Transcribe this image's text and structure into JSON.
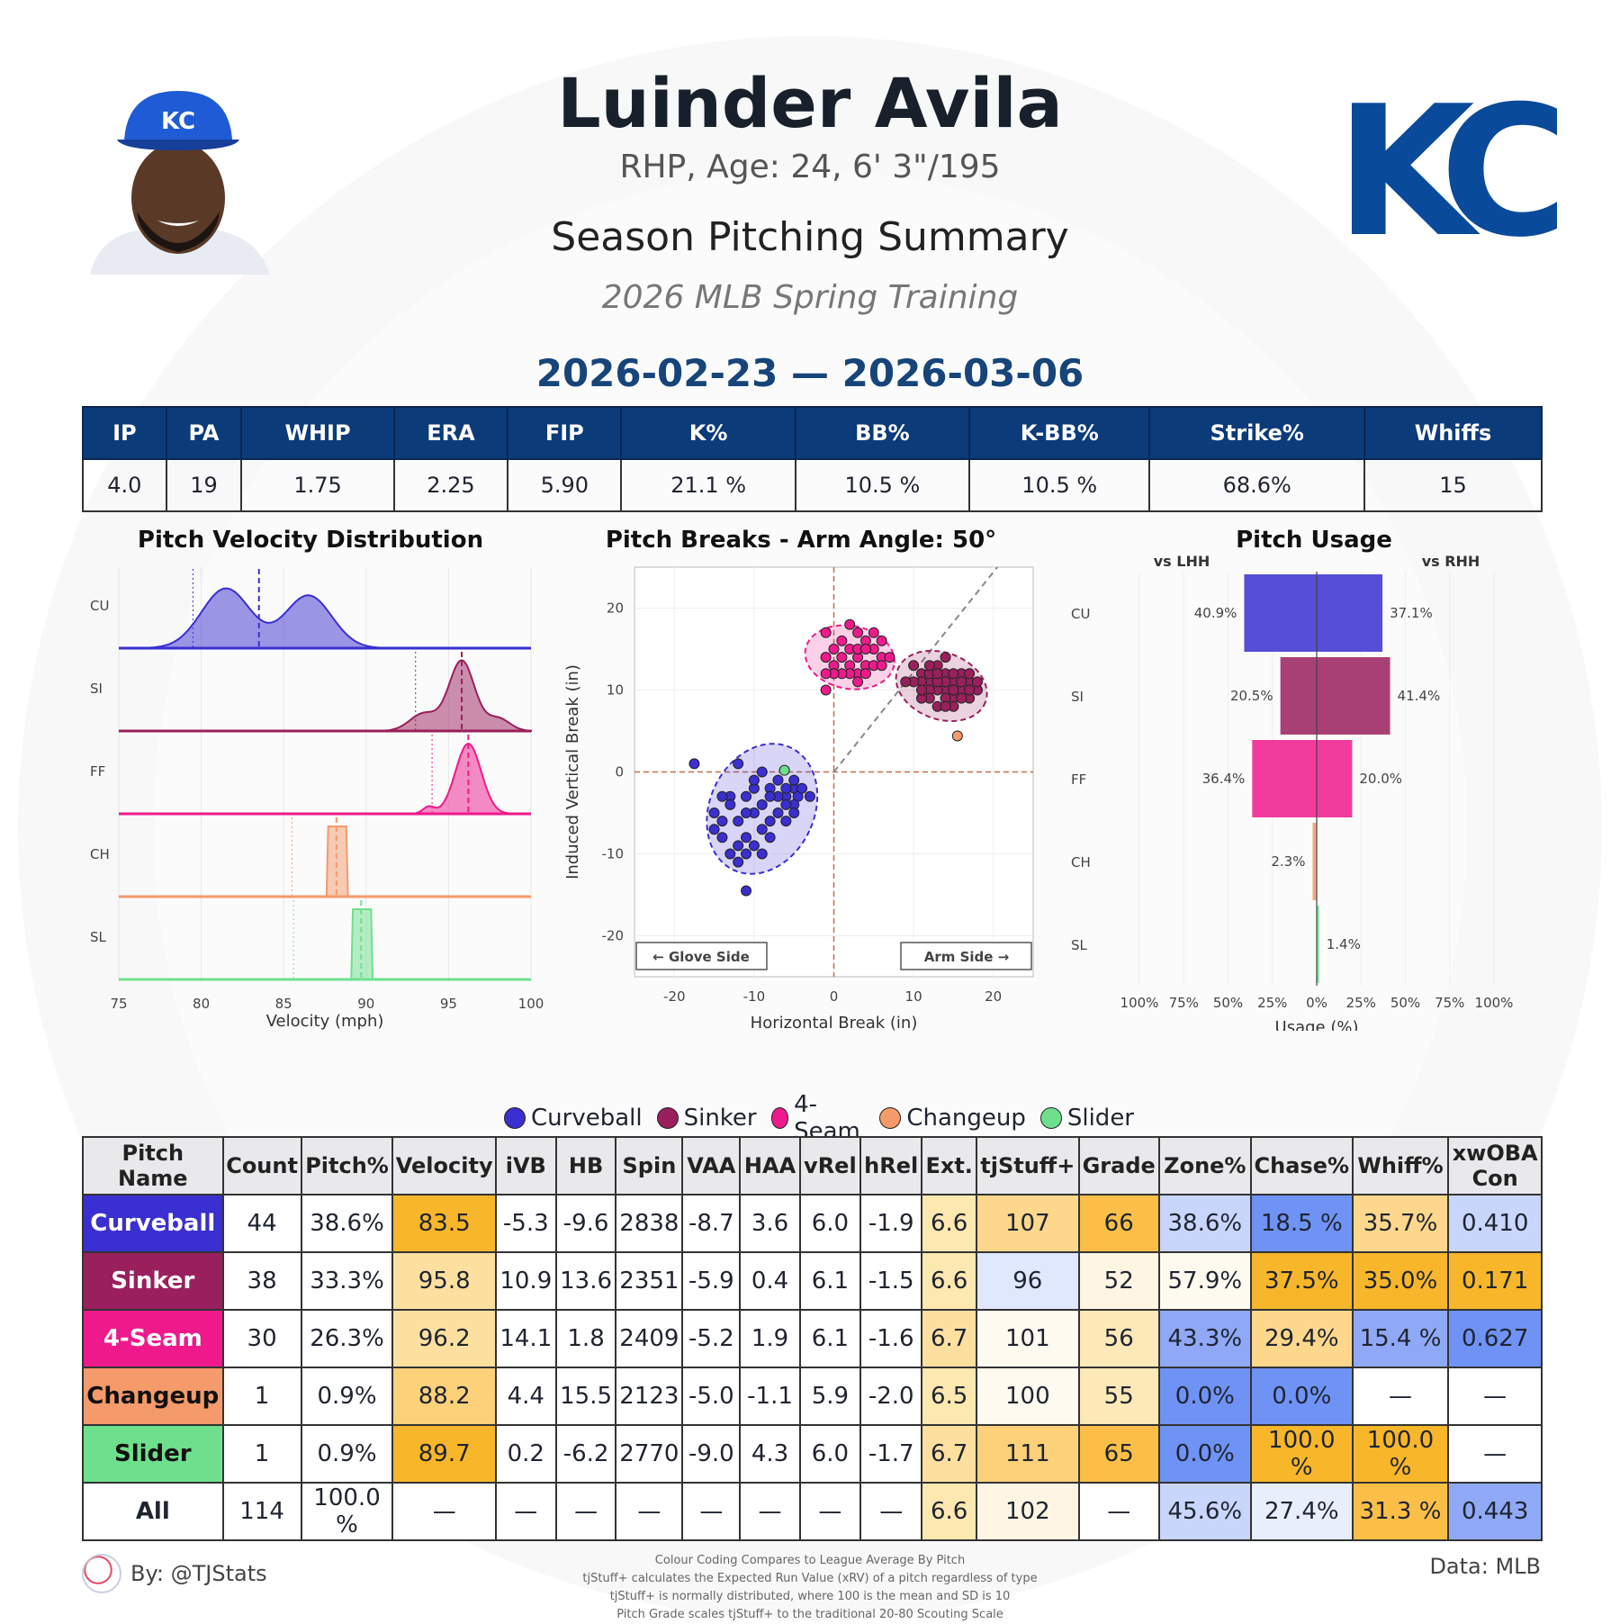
{
  "header": {
    "name": "Luinder Avila",
    "bio": "RHP, Age: 24, 6' 3\"/195",
    "title": "Season Pitching Summary",
    "season": "2026 MLB Spring Training",
    "dates": "2026-02-23 — 2026-03-06",
    "team_logo_text": "KC",
    "cap_logo_text": "KC"
  },
  "season_stats": {
    "headers": [
      "IP",
      "PA",
      "WHIP",
      "ERA",
      "FIP",
      "K%",
      "BB%",
      "K-BB%",
      "Strike%",
      "Whiffs"
    ],
    "values": [
      "4.0",
      "19",
      "1.75",
      "2.25",
      "5.90",
      "21.1 %",
      "10.5 %",
      "10.5 %",
      "68.6%",
      "15"
    ]
  },
  "colors": {
    "Curveball": "#3a2fd0",
    "Sinker": "#9a1f5d",
    "4-Seam": "#ee1a8c",
    "Changeup": "#f49a6b",
    "Slider": "#6ee08d",
    "header_blue": "#0c3b7a"
  },
  "chart_data": [
    {
      "type": "area",
      "title": "Pitch Velocity Distribution",
      "xlabel": "Velocity (mph)",
      "xlim": [
        75,
        100
      ],
      "x_ticks": [
        "75",
        "80",
        "85",
        "90",
        "95",
        "100"
      ],
      "rows": [
        {
          "label": "CU",
          "pitch": "Curveball",
          "mean": 83.5,
          "league_avg": 79.5
        },
        {
          "label": "SI",
          "pitch": "Sinker",
          "mean": 95.8,
          "league_avg": 93.0
        },
        {
          "label": "FF",
          "pitch": "4-Seam",
          "mean": 96.2,
          "league_avg": 94.0
        },
        {
          "label": "CH",
          "pitch": "Changeup",
          "mean": 88.2,
          "league_avg": 85.5
        },
        {
          "label": "SL",
          "pitch": "Slider",
          "mean": 89.7,
          "league_avg": 85.6
        }
      ]
    },
    {
      "type": "scatter",
      "title": "Pitch Breaks - Arm Angle: 50°",
      "xlabel": "Horizontal Break (in)",
      "ylabel": "Induced Vertical Break (in)",
      "xlim": [
        -25,
        25
      ],
      "ylim": [
        -25,
        25
      ],
      "x_ticks": [
        "-20",
        "-10",
        "0",
        "10",
        "20"
      ],
      "y_ticks": [
        "20",
        "10",
        "0",
        "-10",
        "-20"
      ],
      "glove_label": "← Glove Side",
      "arm_label": "Arm Side →",
      "series": [
        {
          "name": "Curveball",
          "points": [
            [
              -17.5,
              1
            ],
            [
              -12,
              1
            ],
            [
              -10,
              -5
            ],
            [
              -8,
              -2
            ],
            [
              -6,
              -3
            ],
            [
              -5,
              -2
            ],
            [
              -4.5,
              -3
            ],
            [
              -5,
              -4
            ],
            [
              -7,
              -3
            ],
            [
              -9,
              -4
            ],
            [
              -11,
              -5
            ],
            [
              -13,
              -3
            ],
            [
              -14,
              -6
            ],
            [
              -15,
              -7
            ],
            [
              -14,
              -8
            ],
            [
              -12,
              -9
            ],
            [
              -10,
              -9
            ],
            [
              -11,
              -10
            ],
            [
              -12,
              -11
            ],
            [
              -13,
              -10
            ],
            [
              -9,
              -7
            ],
            [
              -8,
              -6
            ],
            [
              -7,
              -5
            ],
            [
              -6,
              -4
            ],
            [
              -5,
              -5
            ],
            [
              -9,
              0
            ],
            [
              -11,
              -3
            ],
            [
              -13,
              -4
            ],
            [
              -7,
              -1
            ],
            [
              -8,
              -3
            ],
            [
              -4,
              -2
            ],
            [
              -3,
              -3
            ],
            [
              -5,
              -1
            ],
            [
              -6,
              -2
            ],
            [
              -10,
              -2
            ],
            [
              -12,
              -6
            ],
            [
              -15,
              -5
            ],
            [
              -11,
              -8
            ],
            [
              -9,
              -10
            ],
            [
              -14,
              -3
            ],
            [
              -6,
              -6
            ],
            [
              -8,
              -8
            ],
            [
              -11,
              -14.5
            ],
            [
              -10,
              -1
            ]
          ]
        },
        {
          "name": "Sinker",
          "points": [
            [
              10,
              13
            ],
            [
              11,
              12
            ],
            [
              12,
              11
            ],
            [
              13,
              13
            ],
            [
              14,
              12
            ],
            [
              15,
              11
            ],
            [
              16,
              10
            ],
            [
              17,
              11
            ],
            [
              18,
              10
            ],
            [
              15,
              9
            ],
            [
              14,
              10
            ],
            [
              13,
              10
            ],
            [
              12,
              10
            ],
            [
              11,
              11
            ],
            [
              16,
              12
            ],
            [
              17,
              9
            ],
            [
              18,
              11
            ],
            [
              14,
              9
            ],
            [
              15,
              8
            ],
            [
              13,
              8
            ],
            [
              12,
              9
            ],
            [
              11,
              9
            ],
            [
              16,
              9
            ],
            [
              17,
              10
            ],
            [
              14,
              11
            ],
            [
              13,
              11
            ],
            [
              15,
              12
            ],
            [
              12,
              12
            ],
            [
              10,
              11
            ],
            [
              11,
              10
            ],
            [
              16,
              11
            ],
            [
              14,
              14
            ],
            [
              13,
              12
            ],
            [
              15,
              10
            ],
            [
              9,
              11
            ],
            [
              17,
              12
            ],
            [
              14,
              8
            ],
            [
              12,
              13
            ]
          ]
        },
        {
          "name": "4-Seam",
          "points": [
            [
              -1,
              17
            ],
            [
              0,
              15
            ],
            [
              1,
              16
            ],
            [
              2,
              18
            ],
            [
              3,
              17
            ],
            [
              4,
              16
            ],
            [
              5,
              15
            ],
            [
              6,
              14
            ],
            [
              4,
              13
            ],
            [
              3,
              14
            ],
            [
              2,
              15
            ],
            [
              1,
              14
            ],
            [
              0,
              13
            ],
            [
              -1,
              14
            ],
            [
              2,
              13
            ],
            [
              3,
              12
            ],
            [
              4,
              12
            ],
            [
              5,
              13
            ],
            [
              6,
              16
            ],
            [
              5,
              17
            ],
            [
              3,
              15
            ],
            [
              2,
              12
            ],
            [
              1,
              12
            ],
            [
              0,
              12
            ],
            [
              -1,
              12
            ],
            [
              4,
              15
            ],
            [
              6,
              13
            ],
            [
              7,
              14
            ],
            [
              -1,
              10
            ],
            [
              3,
              11
            ]
          ]
        },
        {
          "name": "Changeup",
          "points": [
            [
              15.5,
              4.4
            ]
          ]
        },
        {
          "name": "Slider",
          "points": [
            [
              -6.2,
              0.2
            ]
          ]
        }
      ]
    },
    {
      "type": "bar",
      "title": "Pitch Usage",
      "xlabel": "Usage (%)",
      "left_label": "vs LHH",
      "right_label": "vs RHH",
      "x_ticks": [
        "100%",
        "75%",
        "50%",
        "25%",
        "0%",
        "25%",
        "50%",
        "75%",
        "100%"
      ],
      "categories": [
        "CU",
        "SI",
        "FF",
        "CH",
        "SL"
      ],
      "series": [
        {
          "name": "vs LHH",
          "values": [
            40.9,
            20.5,
            36.4,
            2.3,
            0
          ]
        },
        {
          "name": "vs RHH",
          "values": [
            37.1,
            41.4,
            20.0,
            0,
            1.4
          ]
        }
      ],
      "value_labels_left": [
        "40.9%",
        "20.5%",
        "36.4%",
        "2.3%",
        ""
      ],
      "value_labels_right": [
        "37.1%",
        "41.4%",
        "20.0%",
        "",
        "1.4%"
      ]
    }
  ],
  "legend": [
    "Curveball",
    "Sinker",
    "4-Seam",
    "Changeup",
    "Slider"
  ],
  "pitch_table": {
    "headers": [
      "Pitch Name",
      "Count",
      "Pitch%",
      "Velocity",
      "iVB",
      "HB",
      "Spin",
      "VAA",
      "HAA",
      "vRel",
      "hRel",
      "Ext.",
      "tjStuff+",
      "Grade",
      "Zone%",
      "Chase%",
      "Whiff%",
      "xwOBA Con"
    ],
    "rows": [
      {
        "name": "Curveball",
        "cells": [
          "44",
          "38.6%",
          "83.5",
          "-5.3",
          "-9.6",
          "2838",
          "-8.7",
          "3.6",
          "6.0",
          "-1.9",
          "6.6",
          "107",
          "66",
          "38.6%",
          "18.5 %",
          "35.7%",
          "0.410"
        ],
        "shades": [
          "#fff",
          "#fff",
          "#f8b62a",
          "#fff",
          "#fff",
          "#fff",
          "#fff",
          "#fff",
          "#fff",
          "#fff",
          "#fde8b0",
          "#fdd78c",
          "#fbbf48",
          "#c9d6fb",
          "#6f93f5",
          "#fdd78c",
          "#c9d6fb"
        ]
      },
      {
        "name": "Sinker",
        "cells": [
          "38",
          "33.3%",
          "95.8",
          "10.9",
          "13.6",
          "2351",
          "-5.9",
          "0.4",
          "6.1",
          "-1.5",
          "6.6",
          "96",
          "52",
          "57.9%",
          "37.5%",
          "35.0%",
          "0.171"
        ],
        "shades": [
          "#fff",
          "#fff",
          "#fde0a0",
          "#fff",
          "#fff",
          "#fff",
          "#fff",
          "#fff",
          "#fff",
          "#fff",
          "#fde8b0",
          "#e0e8fd",
          "#fef6e3",
          "#fffaf0",
          "#f8b62a",
          "#f8b62a",
          "#f8b62a"
        ]
      },
      {
        "name": "4-Seam",
        "cells": [
          "30",
          "26.3%",
          "96.2",
          "14.1",
          "1.8",
          "2409",
          "-5.2",
          "1.9",
          "6.1",
          "-1.6",
          "6.7",
          "101",
          "56",
          "43.3%",
          "29.4%",
          "15.4 %",
          "0.627"
        ],
        "shades": [
          "#fff",
          "#fff",
          "#fde0a0",
          "#fff",
          "#fff",
          "#fff",
          "#fff",
          "#fff",
          "#fff",
          "#fff",
          "#fde0a0",
          "#fffaf0",
          "#fde8b8",
          "#8fa9f7",
          "#fdd78c",
          "#8fa9f7",
          "#6f93f5"
        ]
      },
      {
        "name": "Changeup",
        "cells": [
          "1",
          "0.9%",
          "88.2",
          "4.4",
          "15.5",
          "2123",
          "-5.0",
          "-1.1",
          "5.9",
          "-2.0",
          "6.5",
          "100",
          "55",
          "0.0%",
          "0.0%",
          "—",
          "—"
        ],
        "shades": [
          "#fff",
          "#fff",
          "#fdd07a",
          "#fff",
          "#fff",
          "#fff",
          "#fff",
          "#fff",
          "#fff",
          "#fff",
          "#fde8b0",
          "#fffaf0",
          "#fde8b8",
          "#6f93f5",
          "#6f93f5",
          "#fff",
          "#fff"
        ]
      },
      {
        "name": "Slider",
        "cells": [
          "1",
          "0.9%",
          "89.7",
          "0.2",
          "-6.2",
          "2770",
          "-9.0",
          "4.3",
          "6.0",
          "-1.7",
          "6.7",
          "111",
          "65",
          "0.0%",
          "100.0 %",
          "100.0 %",
          "—"
        ],
        "shades": [
          "#fff",
          "#fff",
          "#f8b62a",
          "#fff",
          "#fff",
          "#fff",
          "#fff",
          "#fff",
          "#fff",
          "#fff",
          "#fde0a0",
          "#fdd07a",
          "#fbbf48",
          "#6f93f5",
          "#f8b62a",
          "#f8b62a",
          "#fff"
        ]
      },
      {
        "name": "All",
        "cells": [
          "114",
          "100.0 %",
          "—",
          "—",
          "—",
          "—",
          "—",
          "—",
          "—",
          "—",
          "6.6",
          "102",
          "—",
          "45.6%",
          "27.4%",
          "31.3 %",
          "0.443"
        ],
        "shades": [
          "#fff",
          "#fff",
          "#fff",
          "#fff",
          "#fff",
          "#fff",
          "#fff",
          "#fff",
          "#fff",
          "#fff",
          "#fde8b0",
          "#fef6e3",
          "#fff",
          "#c9d6fb",
          "#e9eefd",
          "#fbbf48",
          "#8fa9f7"
        ]
      }
    ]
  },
  "footer": {
    "byline": "By: @TJStats",
    "source": "Data: MLB",
    "notes": [
      "Colour Coding Compares to League Average By Pitch",
      "tjStuff+ calculates the Expected Run Value (xRV) of a pitch regardless of type",
      "tjStuff+ is normally distributed, where 100 is the mean and SD is 10",
      "Pitch Grade scales tjStuff+ to the traditional 20-80 Scouting Scale"
    ]
  }
}
